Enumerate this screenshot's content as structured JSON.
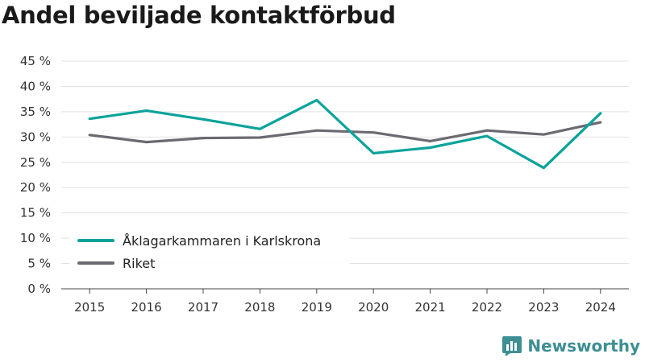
{
  "title": "Andel beviljade kontaktförbud",
  "brand": {
    "name": "Newsworthy",
    "color": "#3d8f94",
    "icon": "newsworthy-logo-icon"
  },
  "chart_data": {
    "type": "line",
    "title": "Andel beviljade kontaktförbud",
    "xlabel": "",
    "ylabel": "",
    "categories": [
      "2015",
      "2016",
      "2017",
      "2018",
      "2019",
      "2020",
      "2021",
      "2022",
      "2023",
      "2024"
    ],
    "ylim": [
      0,
      45
    ],
    "yticks": [
      0,
      5,
      10,
      15,
      20,
      25,
      30,
      35,
      40,
      45
    ],
    "ytick_labels": [
      "0 %",
      "5 %",
      "10 %",
      "15 %",
      "20 %",
      "25 %",
      "30 %",
      "35 %",
      "40 %",
      "45 %"
    ],
    "grid": true,
    "legend_position": "bottom-left",
    "series": [
      {
        "name": "Åklagarkammaren i Karlskrona",
        "color": "#0aa39b",
        "values": [
          33.6,
          35.2,
          33.5,
          31.6,
          37.3,
          26.8,
          27.9,
          30.2,
          23.9,
          34.7
        ]
      },
      {
        "name": "Riket",
        "color": "#6b6a72",
        "values": [
          30.4,
          29.0,
          29.8,
          29.9,
          31.3,
          30.9,
          29.2,
          31.3,
          30.5,
          32.9
        ]
      }
    ]
  }
}
